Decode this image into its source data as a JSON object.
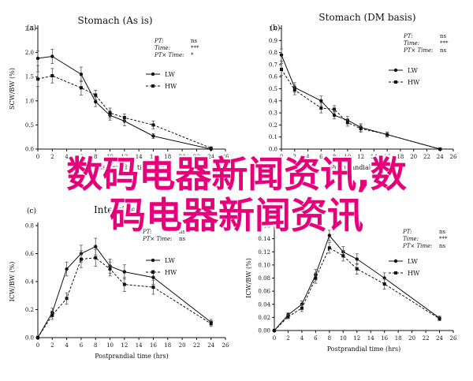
{
  "overlay": {
    "line1": "数码电器新闻资讯,数",
    "line2": "码电器新闻资讯"
  },
  "chart_data": [
    {
      "type": "line",
      "panel_label": "a",
      "title": "Stomach (As is)",
      "xlabel": "Postprandial time (hrs)",
      "ylabel": "SCW/BW (%)",
      "xlim": [
        0,
        26
      ],
      "ylim": [
        0,
        2.5
      ],
      "xticks": [
        0,
        2,
        4,
        6,
        8,
        10,
        12,
        14,
        16,
        18,
        20,
        22,
        24,
        26
      ],
      "yticks": [
        "0.0",
        "0.5",
        "1.0",
        "1.5",
        "2.0",
        "2.5"
      ],
      "stats": [
        {
          "label": "PT:",
          "value": "ns"
        },
        {
          "label": "Time:",
          "value": "***"
        },
        {
          "label": "PT× Time:",
          "value": "*"
        }
      ],
      "series": [
        {
          "name": "LW",
          "style": "solid",
          "x": [
            0,
            2,
            6,
            8,
            10,
            12,
            16,
            24
          ],
          "y": [
            1.88,
            1.92,
            1.55,
            0.98,
            0.7,
            0.58,
            0.27,
            0.0
          ],
          "err": [
            0.15,
            0.15,
            0.15,
            0.1,
            0.1,
            0.1,
            0.05,
            0.02
          ]
        },
        {
          "name": "HW",
          "style": "dashed",
          "x": [
            0,
            2,
            6,
            8,
            10,
            12,
            16,
            24
          ],
          "y": [
            1.45,
            1.52,
            1.27,
            1.12,
            0.75,
            0.65,
            0.5,
            0.02
          ],
          "err": [
            0.15,
            0.15,
            0.15,
            0.1,
            0.1,
            0.08,
            0.08,
            0.02
          ]
        }
      ]
    },
    {
      "type": "line",
      "panel_label": "b",
      "title": "Stomach (DM basis)",
      "xlabel": "Postprandial time (hrs)",
      "ylabel": "",
      "xlim": [
        0,
        26
      ],
      "ylim": [
        0,
        1.0
      ],
      "xticks": [
        0,
        2,
        4,
        6,
        8,
        10,
        12,
        14,
        16,
        18,
        20,
        22,
        24,
        26
      ],
      "yticks": [
        "0.0",
        "0.1",
        "0.2",
        "0.3",
        "0.4",
        "0.5",
        "0.6",
        "0.7",
        "0.8",
        "0.9",
        "1.0"
      ],
      "stats": [
        {
          "label": "PT:",
          "value": "ns"
        },
        {
          "label": "Time:",
          "value": "***"
        },
        {
          "label": "PT× Time:",
          "value": "ns"
        }
      ],
      "series": [
        {
          "name": "LW",
          "style": "solid",
          "x": [
            0,
            2,
            6,
            8,
            10,
            12,
            16,
            24
          ],
          "y": [
            0.78,
            0.51,
            0.4,
            0.28,
            0.24,
            0.18,
            0.12,
            0.0
          ],
          "err": [
            0.05,
            0.04,
            0.04,
            0.03,
            0.03,
            0.03,
            0.02,
            0.01
          ]
        },
        {
          "name": "HW",
          "style": "dashed",
          "x": [
            0,
            2,
            6,
            8,
            10,
            12,
            16,
            24
          ],
          "y": [
            0.66,
            0.49,
            0.34,
            0.33,
            0.22,
            0.17,
            0.12,
            0.0
          ],
          "err": [
            0.05,
            0.04,
            0.04,
            0.03,
            0.03,
            0.03,
            0.02,
            0.01
          ]
        }
      ]
    },
    {
      "type": "line",
      "panel_label": "c",
      "title": "Intestine",
      "xlabel": "Postprandial time (hrs)",
      "ylabel": "ICW/BW (%)",
      "xlim": [
        0,
        26
      ],
      "ylim": [
        0,
        0.8
      ],
      "xticks": [
        0,
        2,
        4,
        6,
        8,
        10,
        12,
        14,
        16,
        18,
        20,
        22,
        24,
        26
      ],
      "yticks": [
        "0.0",
        "0.2",
        "0.4",
        "0.6",
        "0.8"
      ],
      "stats": [
        {
          "label": "PT:",
          "value": "ns"
        },
        {
          "label": "PT× Time:",
          "value": "ns"
        }
      ],
      "series": [
        {
          "name": "LW",
          "style": "solid",
          "x": [
            0,
            2,
            4,
            6,
            8,
            10,
            12,
            16,
            24
          ],
          "y": [
            0.0,
            0.18,
            0.49,
            0.6,
            0.65,
            0.51,
            0.47,
            0.43,
            0.11
          ],
          "err": [
            0.01,
            0.03,
            0.05,
            0.06,
            0.06,
            0.05,
            0.05,
            0.05,
            0.02
          ]
        },
        {
          "name": "HW",
          "style": "dashed",
          "x": [
            0,
            2,
            4,
            6,
            8,
            10,
            12,
            16,
            24
          ],
          "y": [
            0.0,
            0.16,
            0.28,
            0.56,
            0.57,
            0.49,
            0.38,
            0.36,
            0.1
          ],
          "err": [
            0.01,
            0.03,
            0.04,
            0.06,
            0.06,
            0.05,
            0.05,
            0.05,
            0.02
          ]
        }
      ]
    },
    {
      "type": "line",
      "panel_label": "d",
      "title": "",
      "xlabel": "Postprandial time (hrs)",
      "ylabel": "ICW/BW (%)",
      "xlim": [
        0,
        26
      ],
      "ylim": [
        0,
        0.16
      ],
      "xticks": [
        0,
        2,
        4,
        6,
        8,
        10,
        12,
        14,
        16,
        18,
        20,
        22,
        24,
        26
      ],
      "yticks": [
        "0.00",
        "0.02",
        "0.04",
        "0.06",
        "0.08",
        "0.10",
        "0.12",
        "0.14",
        "0.16"
      ],
      "stats": [
        {
          "label": "PT:",
          "value": "ns"
        },
        {
          "label": "Time:",
          "value": "***"
        },
        {
          "label": "PT× Time:",
          "value": "ns"
        }
      ],
      "series": [
        {
          "name": "LW",
          "style": "solid",
          "x": [
            0,
            2,
            4,
            6,
            8,
            10,
            12,
            16,
            24
          ],
          "y": [
            0.0,
            0.024,
            0.04,
            0.085,
            0.145,
            0.12,
            0.109,
            0.08,
            0.019
          ],
          "err": [
            0.002,
            0.003,
            0.005,
            0.008,
            0.008,
            0.008,
            0.008,
            0.008,
            0.003
          ]
        },
        {
          "name": "HW",
          "style": "dashed",
          "x": [
            0,
            2,
            4,
            6,
            8,
            10,
            12,
            16,
            24
          ],
          "y": [
            0.0,
            0.021,
            0.034,
            0.08,
            0.126,
            0.114,
            0.094,
            0.071,
            0.018
          ],
          "err": [
            0.002,
            0.003,
            0.005,
            0.008,
            0.008,
            0.008,
            0.008,
            0.008,
            0.003
          ]
        }
      ]
    }
  ]
}
